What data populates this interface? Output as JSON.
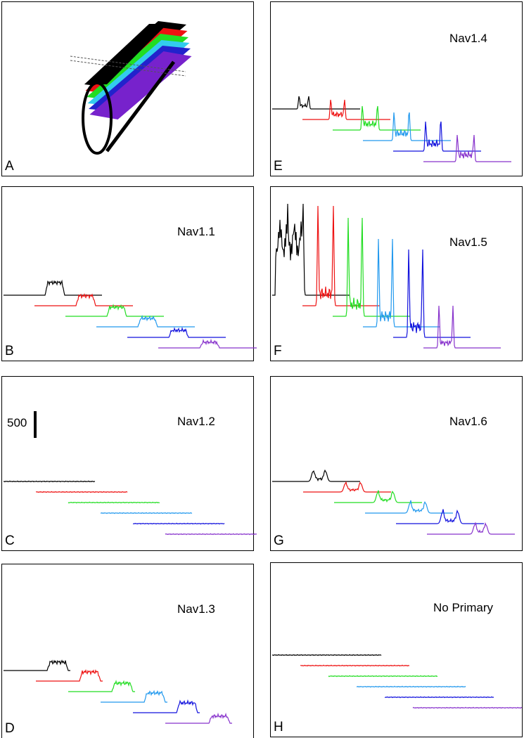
{
  "panels": [
    {
      "label": "A"
    },
    {
      "label": "B",
      "title": "Nav1.1"
    },
    {
      "label": "C",
      "title": "Nav1.2",
      "scale_bar": "500"
    },
    {
      "label": "D",
      "title": "Nav1.3"
    },
    {
      "label": "E",
      "title": "Nav1.4"
    },
    {
      "label": "F",
      "title": "Nav1.5"
    },
    {
      "label": "G",
      "title": "Nav1.6"
    },
    {
      "label": "H",
      "title": "No Primary"
    }
  ]
}
